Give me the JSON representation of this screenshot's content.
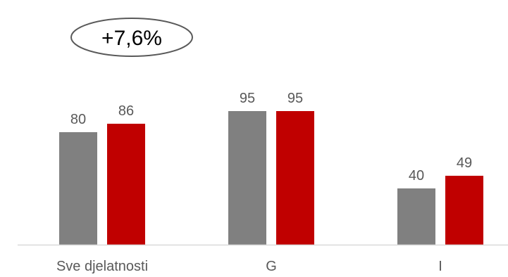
{
  "chart_data": {
    "type": "bar",
    "categories": [
      "Sve djelatnosti",
      "G",
      "I"
    ],
    "series": [
      {
        "values": [
          80,
          95,
          40
        ]
      },
      {
        "values": [
          86,
          95,
          49
        ]
      }
    ],
    "ylim": [
      0,
      100
    ],
    "grid": false,
    "legend": "none",
    "annotation": {
      "text": "+7,6%",
      "shape": "ellipse",
      "category": "Sve djelatnosti"
    }
  },
  "colors": {
    "series": [
      "#808080",
      "#c00000"
    ],
    "label": "#595959",
    "axis": "#d9d9d9",
    "annotation_text": "#000000",
    "annotation_border": "#595959"
  }
}
